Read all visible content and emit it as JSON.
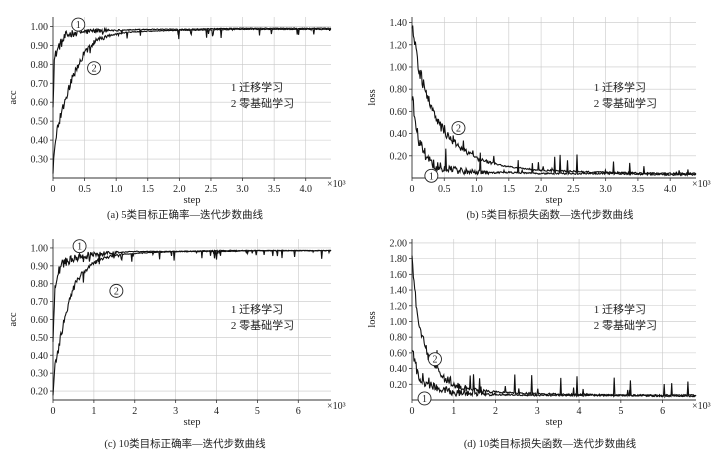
{
  "chart_data": [
    {
      "id": "a",
      "type": "line",
      "caption": "(a) 5类目标正确率—迭代步数曲线",
      "xlabel": "step",
      "ylabel": "acc",
      "x_exponent_label": "×10³",
      "xlim": [
        0,
        4.4
      ],
      "ylim": [
        0.2,
        1.05
      ],
      "x_ticks": [
        0,
        0.5,
        1.0,
        1.5,
        2.0,
        2.5,
        3.0,
        3.5,
        4.0
      ],
      "x_tick_labels": [
        "0",
        "0.5",
        "1.0",
        "1.5",
        "2.0",
        "2.5",
        "3.0",
        "3.5",
        "4.0"
      ],
      "y_ticks": [
        0.3,
        0.4,
        0.5,
        0.6,
        0.7,
        0.8,
        0.9,
        1.0
      ],
      "y_tick_labels": [
        "0.30",
        "0.40",
        "0.50",
        "0.60",
        "0.70",
        "0.80",
        "0.90",
        "1.00"
      ],
      "grid": true,
      "legend": [
        "1 迁移学习",
        "2 零基础学习"
      ],
      "markers": [
        {
          "label": "1",
          "x": 0.4,
          "y": 1.01
        },
        {
          "label": "2",
          "x": 0.65,
          "y": 0.78
        }
      ],
      "series": [
        {
          "name": "1",
          "x": [
            0,
            0.02,
            0.05,
            0.1,
            0.15,
            0.2,
            0.3,
            0.4,
            0.6,
            0.8,
            1.0,
            1.5,
            2.0,
            3.0,
            4.0,
            4.4
          ],
          "y": [
            0.6,
            0.82,
            0.86,
            0.9,
            0.92,
            0.95,
            0.965,
            0.97,
            0.975,
            0.98,
            0.98,
            0.985,
            0.985,
            0.99,
            0.99,
            0.99
          ]
        },
        {
          "name": "2",
          "x": [
            0,
            0.05,
            0.1,
            0.15,
            0.2,
            0.3,
            0.4,
            0.5,
            0.6,
            0.7,
            0.8,
            1.0,
            1.2,
            1.5,
            2.0,
            3.0,
            4.0,
            4.4
          ],
          "y": [
            0.25,
            0.42,
            0.5,
            0.56,
            0.62,
            0.72,
            0.8,
            0.86,
            0.9,
            0.93,
            0.94,
            0.96,
            0.97,
            0.975,
            0.98,
            0.985,
            0.985,
            0.985
          ]
        }
      ]
    },
    {
      "id": "b",
      "type": "line",
      "caption": "(b) 5类目标损失函数—迭代步数曲线",
      "xlabel": "step",
      "ylabel": "loss",
      "x_exponent_label": "×10³",
      "xlim": [
        0,
        4.4
      ],
      "ylim": [
        0,
        1.45
      ],
      "x_ticks": [
        0,
        0.5,
        1.0,
        1.5,
        2.0,
        2.5,
        3.0,
        3.5,
        4.0
      ],
      "x_tick_labels": [
        "0",
        "0.5",
        "1.0",
        "1.5",
        "2.0",
        "2.5",
        "3.0",
        "3.5",
        "4.0"
      ],
      "y_ticks": [
        0.2,
        0.4,
        0.6,
        0.8,
        1.0,
        1.2,
        1.4
      ],
      "y_tick_labels": [
        "0.20",
        "0.40",
        "0.60",
        "0.80",
        "1.00",
        "1.20",
        "1.40"
      ],
      "grid": true,
      "legend": [
        "1 迁移学习",
        "2 零基础学习"
      ],
      "markers": [
        {
          "label": "1",
          "x": 0.3,
          "y": 0.02
        },
        {
          "label": "2",
          "x": 0.72,
          "y": 0.45
        }
      ],
      "series": [
        {
          "name": "1",
          "x": [
            0,
            0.05,
            0.1,
            0.2,
            0.3,
            0.4,
            0.6,
            0.8,
            1.0,
            1.5,
            2.0,
            3.0,
            4.0,
            4.4
          ],
          "y": [
            0.75,
            0.5,
            0.35,
            0.22,
            0.14,
            0.1,
            0.08,
            0.06,
            0.05,
            0.05,
            0.04,
            0.04,
            0.03,
            0.03
          ]
        },
        {
          "name": "2",
          "x": [
            0,
            0.05,
            0.1,
            0.2,
            0.3,
            0.4,
            0.5,
            0.6,
            0.8,
            1.0,
            1.2,
            1.5,
            2.0,
            3.0,
            4.0,
            4.4
          ],
          "y": [
            1.4,
            1.2,
            1.0,
            0.8,
            0.62,
            0.5,
            0.42,
            0.35,
            0.25,
            0.18,
            0.14,
            0.1,
            0.07,
            0.05,
            0.04,
            0.04
          ]
        }
      ]
    },
    {
      "id": "c",
      "type": "line",
      "caption": "(c) 10类目标正确率—迭代步数曲线",
      "xlabel": "step",
      "ylabel": "acc",
      "x_exponent_label": "×10³",
      "xlim": [
        0,
        6.8
      ],
      "ylim": [
        0.15,
        1.05
      ],
      "x_ticks": [
        0,
        1,
        2,
        3,
        4,
        5,
        6
      ],
      "x_tick_labels": [
        "0",
        "1",
        "2",
        "3",
        "4",
        "5",
        "6"
      ],
      "y_ticks": [
        0.2,
        0.3,
        0.4,
        0.5,
        0.6,
        0.7,
        0.8,
        0.9,
        1.0
      ],
      "y_tick_labels": [
        "0.20",
        "0.30",
        "0.40",
        "0.50",
        "0.60",
        "0.70",
        "0.80",
        "0.90",
        "1.00"
      ],
      "grid": true,
      "legend": [
        "1 迁移学习",
        "2 零基础学习"
      ],
      "markers": [
        {
          "label": "1",
          "x": 0.65,
          "y": 1.01
        },
        {
          "label": "2",
          "x": 1.55,
          "y": 0.76
        }
      ],
      "series": [
        {
          "name": "1",
          "x": [
            0,
            0.05,
            0.1,
            0.2,
            0.3,
            0.5,
            0.8,
            1.0,
            1.5,
            2.0,
            3.0,
            4.0,
            5.0,
            6.0,
            6.8
          ],
          "y": [
            0.5,
            0.78,
            0.85,
            0.9,
            0.92,
            0.94,
            0.96,
            0.965,
            0.975,
            0.98,
            0.98,
            0.985,
            0.985,
            0.985,
            0.985
          ]
        },
        {
          "name": "2",
          "x": [
            0,
            0.05,
            0.1,
            0.2,
            0.3,
            0.4,
            0.5,
            0.6,
            0.8,
            1.0,
            1.5,
            2.0,
            3.0,
            4.0,
            5.0,
            6.0,
            6.8
          ],
          "y": [
            0.2,
            0.33,
            0.4,
            0.52,
            0.62,
            0.7,
            0.77,
            0.82,
            0.88,
            0.92,
            0.96,
            0.97,
            0.98,
            0.98,
            0.985,
            0.985,
            0.985
          ]
        }
      ]
    },
    {
      "id": "d",
      "type": "line",
      "caption": "(d) 10类目标损失函数—迭代步数曲线",
      "xlabel": "step",
      "ylabel": "loss",
      "x_exponent_label": "×10³",
      "xlim": [
        0,
        6.8
      ],
      "ylim": [
        0,
        2.05
      ],
      "x_ticks": [
        0,
        1,
        2,
        3,
        4,
        5,
        6
      ],
      "x_tick_labels": [
        "0",
        "1",
        "2",
        "3",
        "4",
        "5",
        "6"
      ],
      "y_ticks": [
        0.2,
        0.4,
        0.6,
        0.8,
        1.0,
        1.2,
        1.4,
        1.6,
        1.8,
        2.0
      ],
      "y_tick_labels": [
        "0.20",
        "0.40",
        "0.60",
        "0.80",
        "1.00",
        "1.20",
        "1.40",
        "1.60",
        "1.80",
        "2.00"
      ],
      "grid": true,
      "legend": [
        "1 迁移学习",
        "2 零基础学习"
      ],
      "markers": [
        {
          "label": "1",
          "x": 0.3,
          "y": 0.02
        },
        {
          "label": "2",
          "x": 0.55,
          "y": 0.52
        }
      ],
      "series": [
        {
          "name": "1",
          "x": [
            0,
            0.05,
            0.1,
            0.2,
            0.3,
            0.5,
            0.8,
            1.0,
            1.5,
            2.0,
            3.0,
            4.0,
            5.0,
            6.0,
            6.8
          ],
          "y": [
            0.7,
            0.5,
            0.4,
            0.3,
            0.25,
            0.18,
            0.13,
            0.1,
            0.08,
            0.07,
            0.06,
            0.06,
            0.06,
            0.05,
            0.05
          ]
        },
        {
          "name": "2",
          "x": [
            0,
            0.05,
            0.1,
            0.2,
            0.3,
            0.4,
            0.5,
            0.7,
            1.0,
            1.5,
            2.0,
            3.0,
            4.0,
            5.0,
            6.0,
            6.8
          ],
          "y": [
            1.9,
            1.5,
            1.2,
            0.9,
            0.7,
            0.55,
            0.45,
            0.3,
            0.2,
            0.12,
            0.1,
            0.08,
            0.07,
            0.06,
            0.06,
            0.06
          ]
        }
      ]
    }
  ]
}
